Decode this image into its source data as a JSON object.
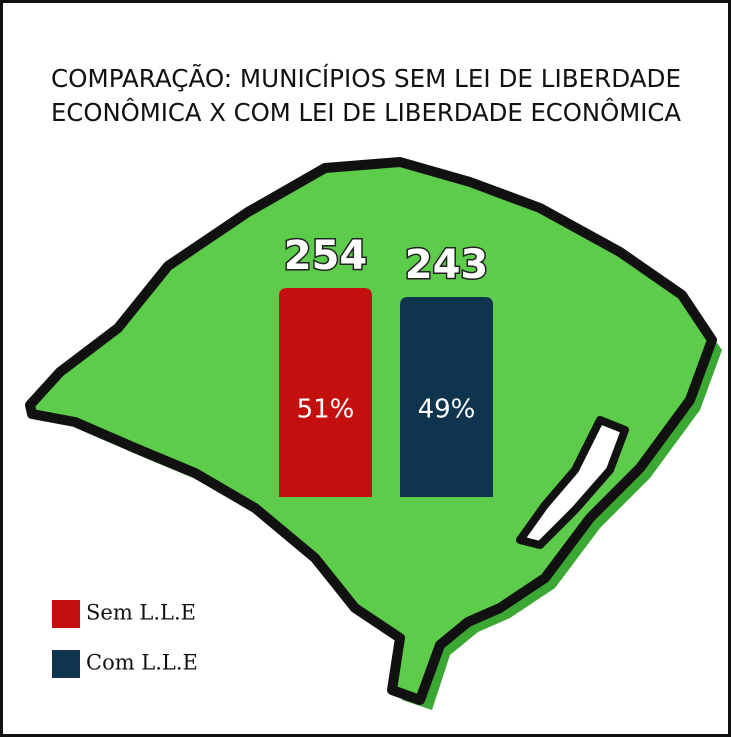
{
  "chart_data": {
    "type": "bar",
    "title": [
      "COMPARAÇÃO: MUNICÍPIOS SEM LEI DE LIBERDADE",
      "ECONÔMICA X COM LEI DE LIBERDADE ECONÔMICA"
    ],
    "categories": [
      "Sem L.L.E",
      "Com L.L.E"
    ],
    "values": [
      254,
      243
    ],
    "colors": [
      "#c3100f",
      "#0f344e"
    ],
    "percentages": [
      51,
      49
    ],
    "percentage_labels": [
      "51%",
      "49%"
    ]
  }
}
